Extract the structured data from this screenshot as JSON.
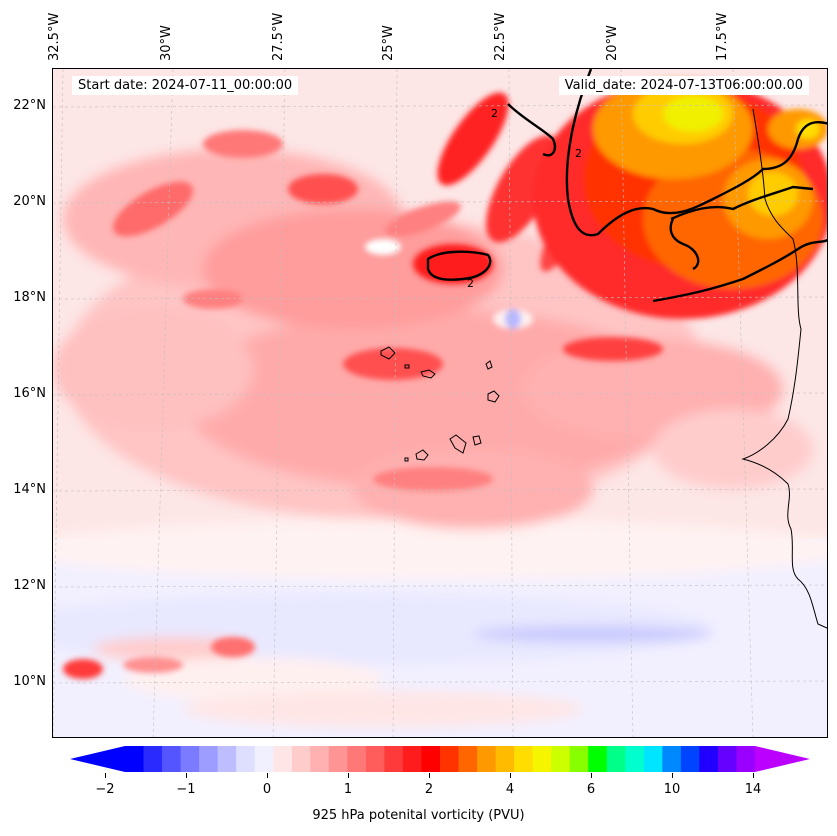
{
  "header": {
    "start_date": "Start date: 2024-07-11_00:00:00",
    "valid_date": "Valid_date: 2024-07-13T06:00:00.00"
  },
  "axes": {
    "longitude_labels": [
      "32.5°W",
      "30°W",
      "27.5°W",
      "25°W",
      "22.5°W",
      "20°W",
      "17.5°W"
    ],
    "latitude_labels": [
      "22°N",
      "20°N",
      "18°N",
      "16°N",
      "14°N",
      "12°N",
      "10°N"
    ]
  },
  "colorbar": {
    "label": "925 hPa potenital vorticity (PVU)",
    "ticks": [
      "−2",
      "−1",
      "0",
      "1",
      "2",
      "4",
      "6",
      "10",
      "14"
    ],
    "colors": [
      "#0000ff",
      "#2a2aff",
      "#5555ff",
      "#7b7bff",
      "#9d9dff",
      "#bebeff",
      "#dedeff",
      "#f0f0ff",
      "#ffe6e6",
      "#ffcccc",
      "#ffb0b0",
      "#ff9494",
      "#ff7878",
      "#ff5c5c",
      "#ff3a3a",
      "#ff1c1c",
      "#ff0000",
      "#ff3300",
      "#ff6600",
      "#ff9900",
      "#ffbb00",
      "#ffdd00",
      "#f5f500",
      "#ccff00",
      "#88ff00",
      "#00ff00",
      "#00ff88",
      "#00ffcc",
      "#00e5ff",
      "#0088ff",
      "#0044ff",
      "#2200ff",
      "#6600ff",
      "#9900ff"
    ],
    "under_color": "#0000ff",
    "over_color": "#bb00ff"
  },
  "contour": {
    "level_label": "2"
  }
}
